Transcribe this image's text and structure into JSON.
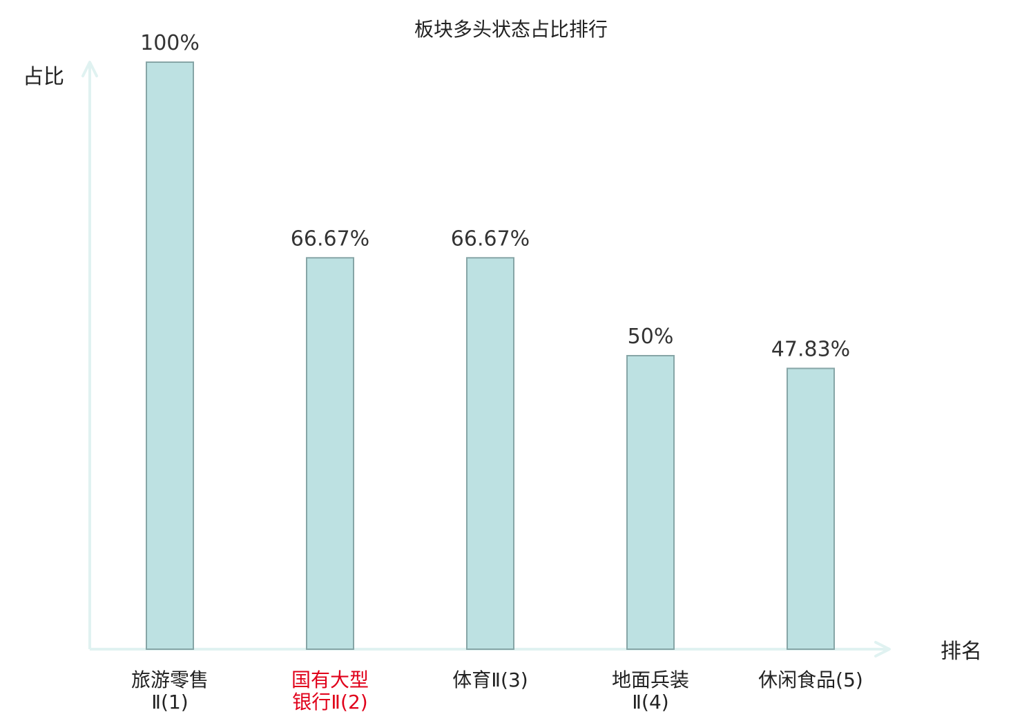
{
  "chart_data": {
    "type": "bar",
    "title": "板块多头状态占比排行",
    "xlabel": "排名",
    "ylabel": "占比",
    "categories": [
      [
        "旅游零售",
        "Ⅱ(1)"
      ],
      [
        "国有大型",
        "银行Ⅱ(2)"
      ],
      [
        "体育Ⅱ(3)"
      ],
      [
        "地面兵装",
        "Ⅱ(4)"
      ],
      [
        "休闲食品(5)"
      ]
    ],
    "values": [
      100,
      66.67,
      66.67,
      50,
      47.83
    ],
    "value_labels": [
      "100%",
      "66.67%",
      "66.67%",
      "50%",
      "47.83%"
    ],
    "highlight_index": 1,
    "ylim": [
      0,
      100
    ],
    "grid": false,
    "colors": {
      "bar_fill": "#bde1e2",
      "bar_stroke": "#86a5a6",
      "axis": "#e0f2f1",
      "text": "#222222",
      "value_text": "#333333",
      "highlight_text": "#e0001a"
    }
  }
}
